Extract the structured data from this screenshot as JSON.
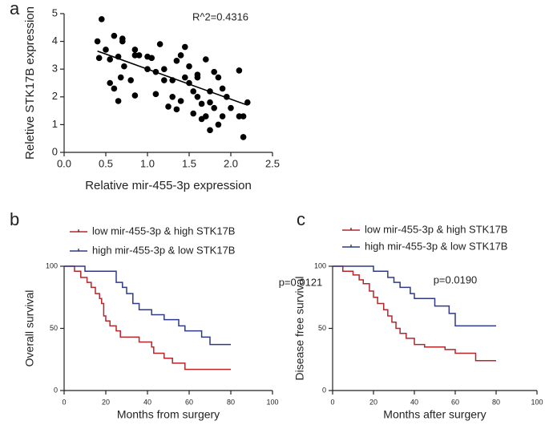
{
  "chart_data": [
    {
      "type": "scatter",
      "panel_label": "a",
      "xlabel": "Relative mir-455-3p expression",
      "ylabel": "Reletive STK17B expression",
      "annotation": "R^2=0.4316",
      "color": "#000000",
      "x": [
        0.45,
        0.4,
        0.42,
        0.5,
        0.55,
        0.6,
        0.55,
        0.6,
        0.65,
        0.7,
        0.7,
        0.68,
        0.65,
        0.72,
        0.85,
        0.85,
        0.9,
        0.8,
        0.85,
        1.0,
        1.0,
        1.05,
        1.1,
        1.15,
        1.1,
        1.2,
        1.25,
        1.2,
        1.3,
        1.3,
        1.35,
        1.4,
        1.45,
        1.4,
        1.35,
        1.45,
        1.5,
        1.5,
        1.55,
        1.55,
        1.6,
        1.6,
        1.6,
        1.65,
        1.7,
        1.7,
        1.75,
        1.75,
        1.8,
        1.8,
        1.85,
        1.85,
        1.9,
        1.9,
        1.95,
        2.0,
        2.1,
        2.1,
        2.15,
        2.15,
        2.2,
        1.65,
        1.75
      ],
      "values": [
        4.8,
        4.0,
        3.4,
        3.7,
        3.35,
        4.2,
        2.5,
        2.3,
        3.45,
        4.0,
        4.1,
        2.7,
        1.85,
        3.1,
        3.7,
        3.5,
        3.5,
        2.6,
        2.05,
        3.0,
        3.45,
        3.4,
        2.9,
        3.9,
        2.1,
        2.6,
        1.65,
        3.0,
        2.6,
        2.0,
        3.3,
        3.5,
        3.8,
        1.85,
        1.55,
        2.7,
        2.5,
        3.1,
        2.2,
        1.4,
        2.0,
        2.7,
        2.8,
        1.75,
        3.35,
        1.3,
        0.8,
        2.2,
        2.9,
        1.6,
        2.7,
        1.0,
        2.3,
        1.3,
        2.0,
        1.6,
        2.95,
        1.3,
        1.3,
        0.55,
        1.8,
        1.2,
        1.8
      ],
      "trend_line": {
        "x": [
          0.4,
          2.2
        ],
        "y": [
          3.65,
          1.7
        ]
      },
      "xlim": [
        0,
        2.5
      ],
      "ylim": [
        0,
        5
      ],
      "xticks": [
        {
          "value": 0,
          "label": "0.0"
        },
        0.5,
        {
          "value": 1,
          "label": "1.0"
        },
        1.5,
        {
          "value": 2,
          "label": "2.0"
        },
        2.5
      ],
      "yticks": [
        0,
        1,
        2,
        3,
        4,
        5
      ]
    },
    {
      "type": "step",
      "panel_label": "b",
      "xlabel": "Months from surgery",
      "ylabel": "Overall survival",
      "annotation": "p=0.0121",
      "series": [
        {
          "name": "low mir-455-3p & high STK17B",
          "color": "#b5262b",
          "x": [
            0,
            5,
            8,
            11,
            13,
            15,
            17,
            18,
            19,
            20,
            22,
            25,
            27,
            36,
            42,
            43,
            48,
            52,
            58,
            80
          ],
          "values": [
            100,
            96,
            91,
            87,
            83,
            78,
            74,
            70,
            60,
            56,
            52,
            48,
            43,
            39,
            35,
            30,
            26,
            22,
            17,
            17
          ]
        },
        {
          "name": "high mir-455-3p & low STK17B",
          "color": "#2e3a87",
          "x": [
            0,
            10,
            25,
            28,
            30,
            33,
            36,
            42,
            48,
            55,
            58,
            66,
            70,
            80
          ],
          "values": [
            100,
            96,
            87,
            83,
            78,
            70,
            65,
            61,
            57,
            52,
            48,
            43,
            37,
            37
          ]
        }
      ],
      "xlim": [
        0,
        100
      ],
      "ylim": [
        0,
        100
      ],
      "xticks": [
        0,
        20,
        40,
        60,
        80,
        100
      ],
      "yticks": [
        0,
        50,
        100
      ]
    },
    {
      "type": "step",
      "panel_label": "c",
      "xlabel": "Months after surgery",
      "ylabel": "Disease free survival",
      "annotation": "p=0.0190",
      "series": [
        {
          "name": "low mir-455-3p & high STK17B",
          "color": "#b5262b",
          "x": [
            0,
            5,
            10,
            13,
            15,
            18,
            20,
            22,
            25,
            27,
            29,
            31,
            33,
            36,
            40,
            45,
            55,
            60,
            70,
            80
          ],
          "values": [
            100,
            96,
            93,
            89,
            86,
            80,
            75,
            70,
            65,
            60,
            55,
            50,
            46,
            42,
            37,
            35,
            33,
            30,
            24,
            24
          ]
        },
        {
          "name": "high mir-455-3p & low STK17B",
          "color": "#2e3a87",
          "x": [
            0,
            20,
            27,
            30,
            33,
            38,
            40,
            50,
            57,
            60,
            80
          ],
          "values": [
            100,
            96,
            91,
            87,
            83,
            78,
            74,
            68,
            62,
            52,
            52
          ]
        }
      ],
      "xlim": [
        0,
        100
      ],
      "ylim": [
        0,
        100
      ],
      "xticks": [
        0,
        20,
        40,
        60,
        80,
        100
      ],
      "yticks": [
        0,
        50,
        100
      ]
    }
  ]
}
